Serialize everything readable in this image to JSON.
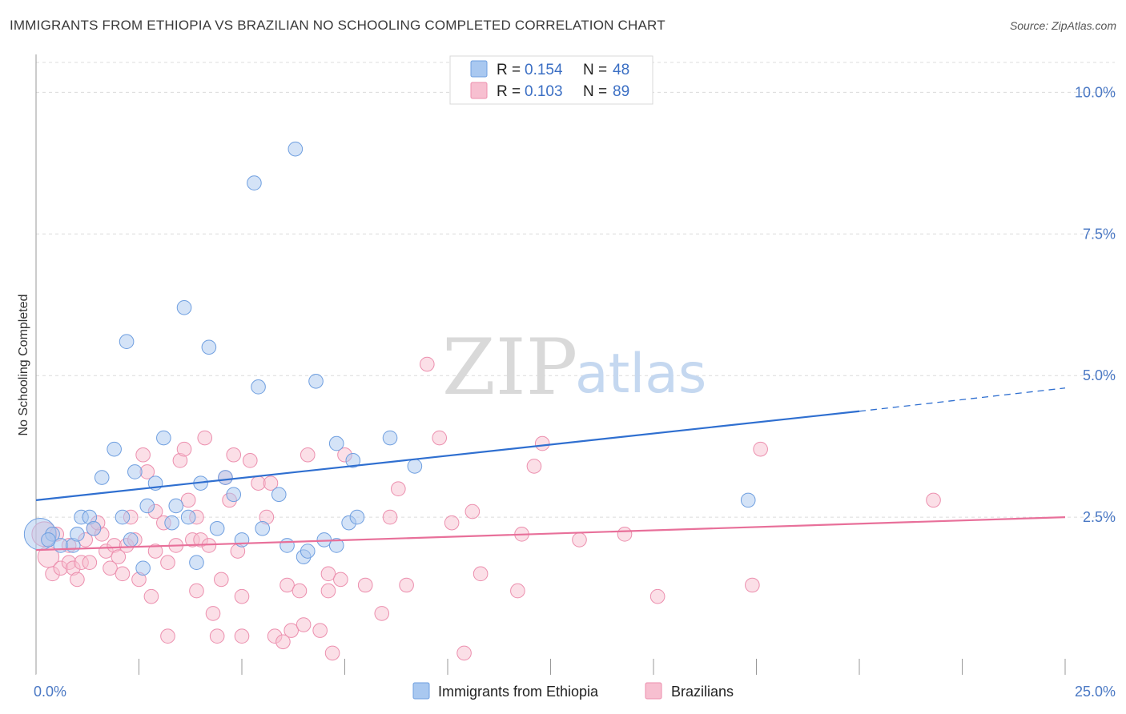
{
  "title": "IMMIGRANTS FROM ETHIOPIA VS BRAZILIAN NO SCHOOLING COMPLETED CORRELATION CHART",
  "source": "Source: ZipAtlas.com",
  "watermark": {
    "part1": "ZIP",
    "part2": "atlas"
  },
  "colors": {
    "blue_fill": "#a9c8f0",
    "blue_stroke": "#6f9fe0",
    "blue_line": "#2f6fd0",
    "pink_fill": "#f7bfd0",
    "pink_stroke": "#ec8fae",
    "pink_line": "#e8709a",
    "grid": "#dcdcdc",
    "tick_label": "#4a78c4"
  },
  "legend": {
    "entries": [
      {
        "r_label": "R =",
        "r_value": "0.154",
        "n_label": "N =",
        "n_value": "48",
        "color": "blue"
      },
      {
        "r_label": "R =",
        "r_value": "0.103",
        "n_label": "N =",
        "n_value": "89",
        "color": "pink"
      }
    ]
  },
  "chart_data": {
    "type": "scatter",
    "xlabel": "",
    "ylabel": "No Schooling Completed",
    "xlim": [
      0,
      25
    ],
    "ylim": [
      0,
      10.5
    ],
    "x_tick_labels": [
      {
        "value": 0,
        "label": "0.0%"
      },
      {
        "value": 25,
        "label": "25.0%"
      }
    ],
    "y_tick_labels": [
      {
        "value": 2.5,
        "label": "2.5%"
      },
      {
        "value": 5.0,
        "label": "5.0%"
      },
      {
        "value": 7.5,
        "label": "7.5%"
      },
      {
        "value": 10.0,
        "label": "10.0%"
      }
    ],
    "x_minor_ticks": [
      2.5,
      5,
      7.5,
      10,
      12.5,
      15,
      17.5,
      20,
      22.5,
      25
    ],
    "grid": true,
    "legend_position": "top-center",
    "series": [
      {
        "name": "Immigrants from Ethiopia",
        "color": "blue",
        "trend": {
          "x0": 0,
          "y0": 2.8,
          "x1": 20,
          "y1": 4.37,
          "dashed_to_x": 25,
          "dashed_to_y": 4.78
        },
        "points": [
          [
            0.1,
            2.2,
            18
          ],
          [
            0.4,
            2.2,
            8
          ],
          [
            0.6,
            2.0,
            8
          ],
          [
            0.9,
            2.0,
            8
          ],
          [
            1.0,
            2.2,
            8
          ],
          [
            1.1,
            2.5,
            8
          ],
          [
            1.3,
            2.5,
            8
          ],
          [
            1.4,
            2.3,
            8
          ],
          [
            1.6,
            3.2,
            8
          ],
          [
            1.9,
            3.7,
            8
          ],
          [
            2.1,
            2.5,
            8
          ],
          [
            2.2,
            5.6,
            8
          ],
          [
            2.3,
            2.1,
            8
          ],
          [
            2.4,
            3.3,
            8
          ],
          [
            2.6,
            1.6,
            8
          ],
          [
            2.7,
            2.7,
            8
          ],
          [
            2.9,
            3.1,
            8
          ],
          [
            3.1,
            3.9,
            8
          ],
          [
            3.3,
            2.4,
            8
          ],
          [
            3.4,
            2.7,
            8
          ],
          [
            3.6,
            6.2,
            8
          ],
          [
            3.7,
            2.5,
            8
          ],
          [
            3.9,
            1.7,
            8
          ],
          [
            4.0,
            3.1,
            8
          ],
          [
            4.2,
            5.5,
            8
          ],
          [
            4.4,
            2.3,
            8
          ],
          [
            4.6,
            3.2,
            8
          ],
          [
            4.8,
            2.9,
            8
          ],
          [
            5.0,
            2.1,
            8
          ],
          [
            5.3,
            8.4,
            8
          ],
          [
            5.4,
            4.8,
            8
          ],
          [
            5.5,
            2.3,
            8
          ],
          [
            5.9,
            2.9,
            8
          ],
          [
            6.1,
            2.0,
            8
          ],
          [
            6.3,
            9.0,
            8
          ],
          [
            6.5,
            1.8,
            8
          ],
          [
            6.6,
            1.9,
            8
          ],
          [
            6.8,
            4.9,
            8
          ],
          [
            7.0,
            2.1,
            8
          ],
          [
            7.3,
            2.0,
            8
          ],
          [
            7.3,
            3.8,
            8
          ],
          [
            7.6,
            2.4,
            8
          ],
          [
            7.7,
            3.5,
            8
          ],
          [
            7.8,
            2.5,
            8
          ],
          [
            8.6,
            3.9,
            8
          ],
          [
            9.2,
            3.4,
            8
          ],
          [
            17.3,
            2.8,
            8
          ],
          [
            0.3,
            2.1,
            8
          ]
        ]
      },
      {
        "name": "Brazilians",
        "color": "pink",
        "trend": {
          "x0": 0,
          "y0": 1.92,
          "x1": 25,
          "y1": 2.5
        },
        "points": [
          [
            0.2,
            2.2,
            14
          ],
          [
            0.3,
            1.8,
            12
          ],
          [
            0.4,
            1.5,
            8
          ],
          [
            0.6,
            1.6,
            8
          ],
          [
            0.8,
            2.0,
            8
          ],
          [
            0.8,
            1.7,
            8
          ],
          [
            0.9,
            1.6,
            8
          ],
          [
            1.0,
            1.4,
            8
          ],
          [
            1.1,
            1.7,
            8
          ],
          [
            1.2,
            2.1,
            8
          ],
          [
            1.3,
            1.7,
            8
          ],
          [
            1.4,
            2.3,
            8
          ],
          [
            1.6,
            2.2,
            8
          ],
          [
            1.7,
            1.9,
            8
          ],
          [
            1.8,
            1.6,
            8
          ],
          [
            1.9,
            2.0,
            8
          ],
          [
            2.0,
            1.8,
            8
          ],
          [
            2.1,
            1.5,
            8
          ],
          [
            2.2,
            2.0,
            8
          ],
          [
            2.3,
            2.5,
            8
          ],
          [
            2.4,
            2.1,
            8
          ],
          [
            2.5,
            1.4,
            8
          ],
          [
            2.6,
            3.6,
            8
          ],
          [
            2.7,
            3.3,
            8
          ],
          [
            2.8,
            1.1,
            8
          ],
          [
            2.9,
            2.6,
            8
          ],
          [
            3.1,
            2.4,
            8
          ],
          [
            3.2,
            1.7,
            8
          ],
          [
            3.2,
            0.4,
            8
          ],
          [
            3.4,
            2.0,
            8
          ],
          [
            3.5,
            3.5,
            8
          ],
          [
            3.6,
            3.7,
            8
          ],
          [
            3.7,
            2.8,
            8
          ],
          [
            3.8,
            2.1,
            8
          ],
          [
            3.9,
            2.5,
            8
          ],
          [
            3.9,
            1.2,
            8
          ],
          [
            4.0,
            2.1,
            8
          ],
          [
            4.1,
            3.9,
            8
          ],
          [
            4.2,
            2.0,
            8
          ],
          [
            4.3,
            0.8,
            8
          ],
          [
            4.4,
            0.4,
            8
          ],
          [
            4.5,
            1.4,
            8
          ],
          [
            4.6,
            3.2,
            8
          ],
          [
            4.7,
            2.8,
            8
          ],
          [
            4.8,
            3.6,
            8
          ],
          [
            4.9,
            1.9,
            8
          ],
          [
            5.0,
            1.1,
            8
          ],
          [
            5.2,
            3.5,
            8
          ],
          [
            5.4,
            3.1,
            8
          ],
          [
            5.6,
            2.5,
            8
          ],
          [
            5.7,
            3.1,
            8
          ],
          [
            5.8,
            0.4,
            8
          ],
          [
            6.0,
            0.3,
            8
          ],
          [
            6.1,
            1.3,
            8
          ],
          [
            6.2,
            0.5,
            8
          ],
          [
            6.4,
            1.2,
            8
          ],
          [
            6.5,
            0.6,
            8
          ],
          [
            6.6,
            3.6,
            8
          ],
          [
            6.9,
            0.5,
            8
          ],
          [
            7.1,
            1.5,
            8
          ],
          [
            7.1,
            1.2,
            8
          ],
          [
            7.2,
            0.1,
            8
          ],
          [
            7.4,
            1.4,
            8
          ],
          [
            7.5,
            3.6,
            8
          ],
          [
            8.0,
            1.3,
            8
          ],
          [
            8.4,
            0.8,
            8
          ],
          [
            8.8,
            3.0,
            8
          ],
          [
            9.0,
            1.3,
            8
          ],
          [
            9.5,
            5.2,
            8
          ],
          [
            9.8,
            3.9,
            8
          ],
          [
            10.1,
            2.4,
            8
          ],
          [
            10.4,
            0.1,
            8
          ],
          [
            10.6,
            2.6,
            8
          ],
          [
            10.8,
            1.5,
            8
          ],
          [
            11.7,
            1.2,
            8
          ],
          [
            11.8,
            2.2,
            8
          ],
          [
            12.1,
            3.4,
            8
          ],
          [
            12.3,
            3.8,
            8
          ],
          [
            13.2,
            2.1,
            8
          ],
          [
            14.3,
            2.2,
            8
          ],
          [
            15.1,
            1.1,
            8
          ],
          [
            17.4,
            1.3,
            8
          ],
          [
            17.6,
            3.7,
            8
          ],
          [
            21.8,
            2.8,
            8
          ],
          [
            5.0,
            0.4,
            8
          ],
          [
            2.9,
            1.9,
            8
          ],
          [
            0.5,
            2.2,
            8
          ],
          [
            1.5,
            2.4,
            8
          ],
          [
            8.6,
            2.5,
            8
          ]
        ]
      }
    ]
  },
  "bottom_legend": [
    {
      "label": "Immigrants from Ethiopia",
      "color": "blue"
    },
    {
      "label": "Brazilians",
      "color": "pink"
    }
  ]
}
